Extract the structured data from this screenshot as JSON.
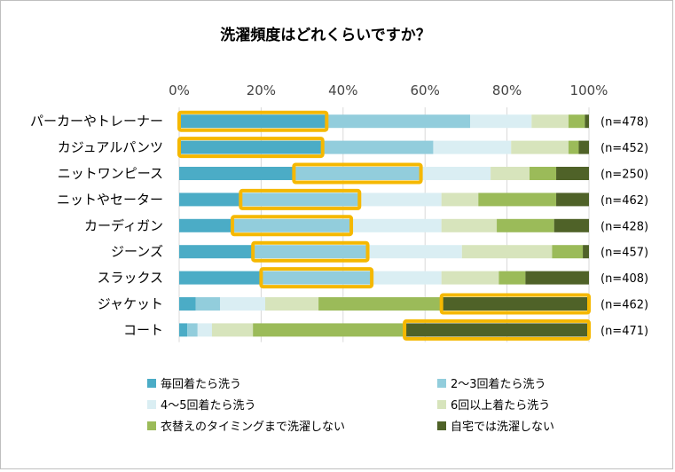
{
  "chart_data": {
    "type": "bar",
    "orientation": "horizontal",
    "stacked": true,
    "percent": true,
    "title": "洗濯頻度はどれくらいですか？",
    "x_ticks": [
      "0%",
      "20%",
      "40%",
      "60%",
      "80%",
      "100%"
    ],
    "xlim": [
      0,
      100
    ],
    "categories": [
      "パーカーやトレーナー",
      "カジュアルパンツ",
      "ニットワンピース",
      "ニットやセーター",
      "カーディガン",
      "ジーンズ",
      "スラックス",
      "ジャケット",
      "コート"
    ],
    "n_labels": [
      "(n=478)",
      "(n=452)",
      "(n=250)",
      "(n=462)",
      "(n=428)",
      "(n=457)",
      "(n=408)",
      "(n=462)",
      "(n=471)"
    ],
    "series": [
      {
        "name": "毎回着たら洗う",
        "color": "#4bacc6",
        "values": [
          36,
          35,
          28,
          15,
          13,
          18,
          20,
          4,
          2
        ]
      },
      {
        "name": "2～3回着たら洗う",
        "color": "#92cddc",
        "values": [
          35,
          27,
          31,
          29,
          29,
          28,
          27,
          6,
          2.5
        ]
      },
      {
        "name": "4～5回着たら洗う",
        "color": "#daeef3",
        "values": [
          15,
          19,
          17,
          20,
          22,
          23,
          17,
          11,
          3.5
        ]
      },
      {
        "name": "6回以上着たら洗う",
        "color": "#d7e4bc",
        "values": [
          9,
          14,
          9.5,
          9,
          13.5,
          22,
          14,
          13,
          10
        ]
      },
      {
        "name": "衣替えのタイミングまで洗濯しない",
        "color": "#9bbb59",
        "values": [
          4,
          2.5,
          6.5,
          19,
          14,
          7.5,
          6.5,
          30,
          37
        ]
      },
      {
        "name": "自宅では洗濯しない",
        "color": "#4f6228",
        "values": [
          1,
          2.5,
          8,
          8,
          8.5,
          1.5,
          15.5,
          36,
          45
        ]
      }
    ],
    "highlight_color": "#f5b800",
    "highlights": [
      {
        "row": 0,
        "from": 0,
        "to": 36
      },
      {
        "row": 1,
        "from": 0,
        "to": 35
      },
      {
        "row": 2,
        "from": 28,
        "to": 59
      },
      {
        "row": 3,
        "from": 15,
        "to": 44
      },
      {
        "row": 4,
        "from": 13,
        "to": 42
      },
      {
        "row": 5,
        "from": 18,
        "to": 46
      },
      {
        "row": 6,
        "from": 20,
        "to": 47
      },
      {
        "row": 7,
        "from": 64,
        "to": 100
      },
      {
        "row": 8,
        "from": 55,
        "to": 100
      }
    ]
  }
}
